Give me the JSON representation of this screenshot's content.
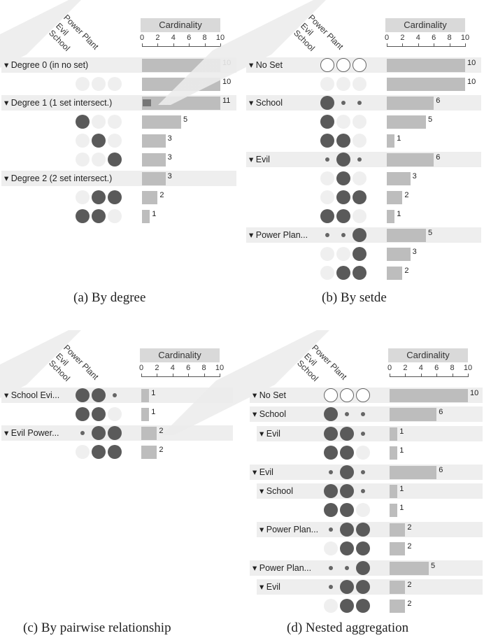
{
  "card_title": "Cardinality",
  "set_names": [
    "School",
    "Evil",
    "Power Plant"
  ],
  "ticks": [
    "0",
    "2",
    "4",
    "6",
    "8",
    "10"
  ],
  "colors": {
    "filled": "#5a5a5a",
    "empty": "#efefef",
    "bar": "#bdbdbd",
    "subbar": "#777777",
    "header": "#eeeeee"
  },
  "panels": [
    {
      "caption": "(a)  By degree",
      "rows": [
        {
          "type": "agg",
          "label": "Degree 0 (in no set)",
          "value": 10,
          "val_label": "10",
          "circles": []
        },
        {
          "type": "sub",
          "circles": [
            "empty",
            "empty",
            "empty"
          ],
          "value": 10,
          "val_label": "10"
        },
        {
          "type": "agg",
          "label": "Degree 1 (1 set intersect.)",
          "value": 11,
          "sub": 0.5,
          "val_label": "11",
          "circles": []
        },
        {
          "type": "sub",
          "circles": [
            "full",
            "empty",
            "empty"
          ],
          "value": 5,
          "val_label": "5"
        },
        {
          "type": "sub",
          "circles": [
            "empty",
            "full",
            "empty"
          ],
          "value": 3,
          "val_label": "3"
        },
        {
          "type": "sub",
          "circles": [
            "empty",
            "empty",
            "full"
          ],
          "value": 3,
          "val_label": "3"
        },
        {
          "type": "agg",
          "label": "Degree 2 (2 set intersect.)",
          "value": 3,
          "val_label": "3",
          "circles": []
        },
        {
          "type": "sub",
          "circles": [
            "empty",
            "full",
            "full"
          ],
          "value": 2,
          "val_label": "2"
        },
        {
          "type": "sub",
          "circles": [
            "full",
            "full",
            "empty"
          ],
          "value": 1,
          "val_label": "1"
        }
      ]
    },
    {
      "caption": "(b)  By setde",
      "rows": [
        {
          "type": "agg",
          "label": "No Set",
          "value": 10,
          "val_label": "10",
          "circles": [
            "outline",
            "outline",
            "outline"
          ]
        },
        {
          "type": "sub",
          "circles": [
            "empty",
            "empty",
            "empty"
          ],
          "value": 10,
          "val_label": "10"
        },
        {
          "type": "agg",
          "label": "School",
          "value": 6,
          "val_label": "6",
          "circles": [
            "full",
            "dot",
            "dot"
          ]
        },
        {
          "type": "sub",
          "circles": [
            "full",
            "empty",
            "empty"
          ],
          "value": 5,
          "val_label": "5"
        },
        {
          "type": "sub",
          "circles": [
            "full",
            "full",
            "empty"
          ],
          "value": 1,
          "val_label": "1"
        },
        {
          "type": "agg",
          "label": "Evil",
          "value": 6,
          "val_label": "6",
          "circles": [
            "dot",
            "full",
            "dot"
          ]
        },
        {
          "type": "sub",
          "circles": [
            "empty",
            "full",
            "empty"
          ],
          "value": 3,
          "val_label": "3"
        },
        {
          "type": "sub",
          "circles": [
            "empty",
            "full",
            "full"
          ],
          "value": 2,
          "val_label": "2"
        },
        {
          "type": "sub",
          "circles": [
            "full",
            "full",
            "empty"
          ],
          "value": 1,
          "val_label": "1"
        },
        {
          "type": "agg",
          "label": "Power Plan...",
          "value": 5,
          "val_label": "5",
          "circles": [
            "dot",
            "dot",
            "full"
          ]
        },
        {
          "type": "sub",
          "circles": [
            "empty",
            "empty",
            "full"
          ],
          "value": 3,
          "val_label": "3"
        },
        {
          "type": "sub",
          "circles": [
            "empty",
            "full",
            "full"
          ],
          "value": 2,
          "val_label": "2"
        }
      ]
    },
    {
      "caption": "(c)  By pairwise relationship",
      "rows": [
        {
          "type": "agg",
          "label": "School Evi...",
          "value": 1,
          "val_label": "1",
          "circles": [
            "full",
            "full",
            "dot"
          ]
        },
        {
          "type": "sub",
          "circles": [
            "full",
            "full",
            "empty"
          ],
          "value": 1,
          "val_label": "1"
        },
        {
          "type": "agg",
          "label": "Evil Power...",
          "value": 2,
          "val_label": "2",
          "circles": [
            "dot",
            "full",
            "full"
          ]
        },
        {
          "type": "sub",
          "circles": [
            "empty",
            "full",
            "full"
          ],
          "value": 2,
          "val_label": "2"
        }
      ]
    },
    {
      "caption": "(d)  Nested aggregation",
      "rows": [
        {
          "type": "agg",
          "label": "No Set",
          "value": 10,
          "val_label": "10",
          "circles": [
            "outline",
            "outline",
            "outline"
          ]
        },
        {
          "type": "agg",
          "label": "School",
          "value": 6,
          "val_label": "6",
          "circles": [
            "full",
            "dot",
            "dot"
          ]
        },
        {
          "type": "agg2",
          "label": "Evil",
          "value": 1,
          "val_label": "1",
          "circles": [
            "full",
            "full",
            "dot"
          ]
        },
        {
          "type": "sub",
          "circles": [
            "full",
            "full",
            "empty"
          ],
          "value": 1,
          "val_label": "1"
        },
        {
          "type": "agg",
          "label": "Evil",
          "value": 6,
          "val_label": "6",
          "circles": [
            "dot",
            "full",
            "dot"
          ]
        },
        {
          "type": "agg2",
          "label": "School",
          "value": 1,
          "val_label": "1",
          "circles": [
            "full",
            "full",
            "dot"
          ]
        },
        {
          "type": "sub",
          "circles": [
            "full",
            "full",
            "empty"
          ],
          "value": 1,
          "val_label": "1"
        },
        {
          "type": "agg2",
          "label": "Power Plan...",
          "value": 2,
          "val_label": "2",
          "circles": [
            "dot",
            "full",
            "full"
          ]
        },
        {
          "type": "sub",
          "circles": [
            "empty",
            "full",
            "full"
          ],
          "value": 2,
          "val_label": "2"
        },
        {
          "type": "agg",
          "label": "Power Plan...",
          "value": 5,
          "val_label": "5",
          "circles": [
            "dot",
            "dot",
            "full"
          ]
        },
        {
          "type": "agg2",
          "label": "Evil",
          "value": 2,
          "val_label": "2",
          "circles": [
            "dot",
            "full",
            "full"
          ]
        },
        {
          "type": "sub",
          "circles": [
            "empty",
            "full",
            "full"
          ],
          "value": 2,
          "val_label": "2"
        }
      ]
    }
  ]
}
